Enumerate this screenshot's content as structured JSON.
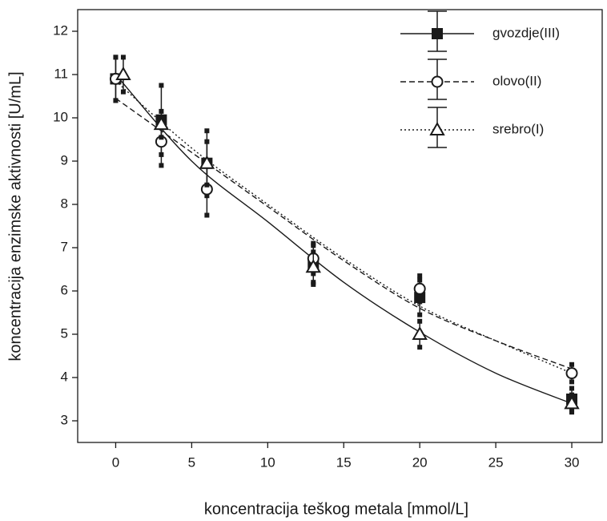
{
  "chart_data": {
    "type": "scatter",
    "x_label": "koncentracija teškog metala [mmol/L]",
    "y_label": "koncentracija enzimske aktivnosti [U/mL]",
    "xlim": [
      -2.5,
      32
    ],
    "ylim": [
      2.5,
      12.5
    ],
    "xticks": [
      0,
      5,
      10,
      15,
      20,
      25,
      30
    ],
    "yticks": [
      3,
      4,
      5,
      6,
      7,
      8,
      9,
      10,
      11,
      12
    ],
    "legend": "top-right",
    "fit_x": [
      0,
      5,
      10,
      15,
      20,
      25,
      30
    ],
    "series": [
      {
        "name": "gvozdje(III)",
        "color": "#1a1a1a",
        "marker": "square",
        "line": "solid",
        "x": [
          0,
          3,
          6,
          13,
          20,
          30
        ],
        "values": [
          10.9,
          9.95,
          8.95,
          6.6,
          5.85,
          3.5
        ],
        "errors": [
          0.5,
          0.8,
          0.75,
          0.45,
          0.4,
          0.25
        ],
        "fit_values": [
          11.0,
          9.0,
          7.6,
          6.2,
          5.05,
          4.1,
          3.4
        ]
      },
      {
        "name": "olovo(II)",
        "color": "#1a1a1a",
        "marker": "circle",
        "line": "dashed",
        "x": [
          0,
          3,
          6,
          13,
          20,
          30
        ],
        "values": [
          10.9,
          9.45,
          8.35,
          6.75,
          6.05,
          4.1
        ],
        "errors": [
          0.5,
          0.55,
          0.6,
          0.35,
          0.3,
          0.2
        ],
        "fit_values": [
          10.45,
          9.2,
          7.95,
          6.7,
          5.6,
          4.85,
          4.2
        ]
      },
      {
        "name": "srebro(I)",
        "color": "#1a1a1a",
        "marker": "triangle",
        "line": "dotted",
        "x": [
          0.5,
          3,
          6,
          13,
          20,
          30
        ],
        "values": [
          11.0,
          9.85,
          8.95,
          6.55,
          5.0,
          3.4
        ],
        "errors": [
          0.4,
          0.3,
          0.5,
          0.35,
          0.3,
          0.2
        ],
        "fit_values": [
          10.85,
          9.3,
          8.0,
          6.75,
          5.65,
          4.85,
          4.1
        ]
      }
    ]
  }
}
